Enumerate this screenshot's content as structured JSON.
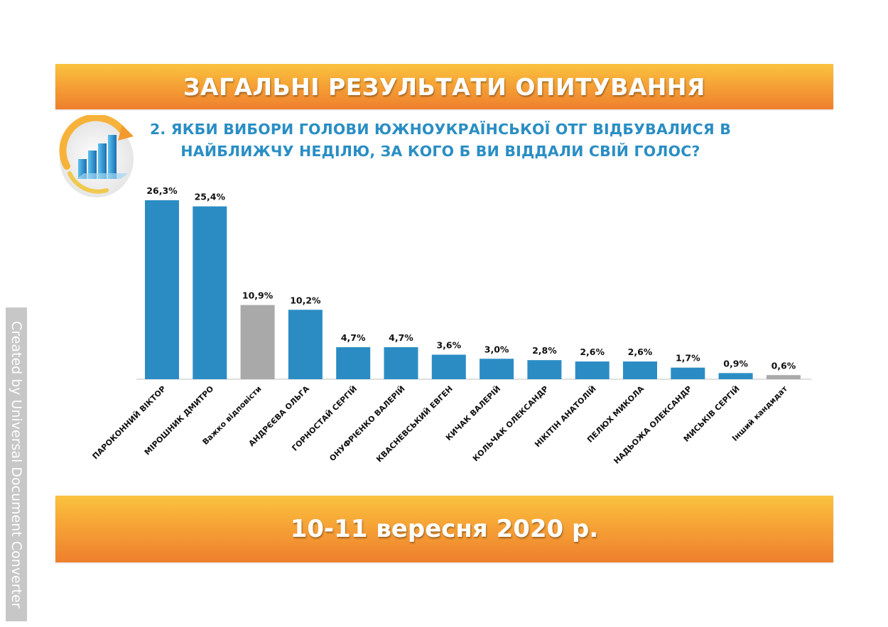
{
  "header": {
    "title": "ЗАГАЛЬНІ РЕЗУЛЬТАТИ ОПИТУВАННЯ"
  },
  "question": {
    "line1": "2. ЯКБИ ВИБОРИ ГОЛОВИ ЮЖНОУКРАЇНСЬКОЇ ОТГ ВІДБУВАЛИСЯ В",
    "line2": "НАЙБЛИЖЧУ НЕДІЛЮ, ЗА КОГО Б ВИ ВІДДАЛИ СВІЙ ГОЛОС?"
  },
  "footer": {
    "date": "10-11 вересня 2020 р."
  },
  "watermark": {
    "text": "Created by Universal Document Converter"
  },
  "colors": {
    "blue": "#2b8cc4",
    "gray": "#a9a9a9",
    "orange": "#f6a336"
  },
  "chart_data": {
    "type": "bar",
    "title": "",
    "xlabel": "",
    "ylabel": "",
    "ylim": [
      0,
      28
    ],
    "grid": false,
    "categories": [
      "ПАРОКОННИЙ ВІКТОР",
      "МІРОШНИК ДМИТРО",
      "Важко відповісти",
      "АНДРЄЄВА ОЛЬГА",
      "ГОРНОСТАЙ СЕРГІЙ",
      "ОНУФРІЄНКО ВАЛЕРІЙ",
      "КВАСНЕВСЬКИЙ ЕВГЕН",
      "КИЧАК ВАЛЕРІЙ",
      "КОЛЬЧАК  ОЛЕКСАНДР",
      "НІКІТІН АНАТОЛІЙ",
      "ПЕЛЮХ МИКОЛА",
      "НАДЬОЖА ОЛЕКСАНДР",
      "МИСЬКІВ СЕРГІЙ",
      "Інший кандидат"
    ],
    "values": [
      26.3,
      25.4,
      10.9,
      10.2,
      4.7,
      4.7,
      3.6,
      3.0,
      2.8,
      2.6,
      2.6,
      1.7,
      0.9,
      0.6
    ],
    "value_labels": [
      "26,3%",
      "25,4%",
      "10,9%",
      "10,2%",
      "4,7%",
      "4,7%",
      "3,6%",
      "3,0%",
      "2,8%",
      "2,6%",
      "2,6%",
      "1,7%",
      "0,9%",
      "0,6%"
    ],
    "bar_colors": [
      "blue",
      "blue",
      "gray",
      "blue",
      "blue",
      "blue",
      "blue",
      "blue",
      "blue",
      "blue",
      "blue",
      "blue",
      "blue",
      "gray"
    ]
  }
}
